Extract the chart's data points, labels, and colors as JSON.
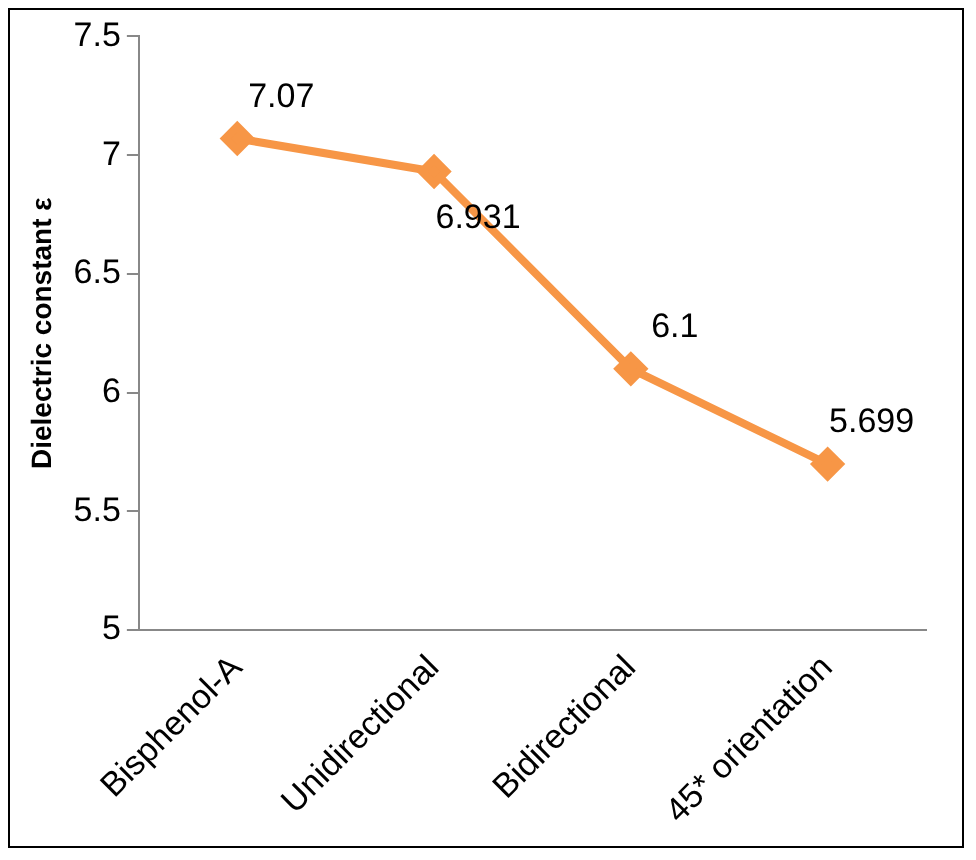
{
  "chart_data": {
    "type": "line",
    "ylabel": "Dielectric constant ε",
    "categories": [
      "Bisphenol-A",
      "Unidirectional",
      "Bidirectional",
      "45* orientation"
    ],
    "series": [
      {
        "color": "#f79646",
        "values": [
          7.07,
          6.931,
          6.1,
          5.699
        ]
      }
    ],
    "ylim": [
      5,
      7.5
    ],
    "yticks": [
      5,
      5.5,
      6,
      6.5,
      7,
      7.5
    ],
    "grid": false,
    "legend": false,
    "marker": "diamond",
    "line_style": "solid",
    "data_labels": true
  }
}
